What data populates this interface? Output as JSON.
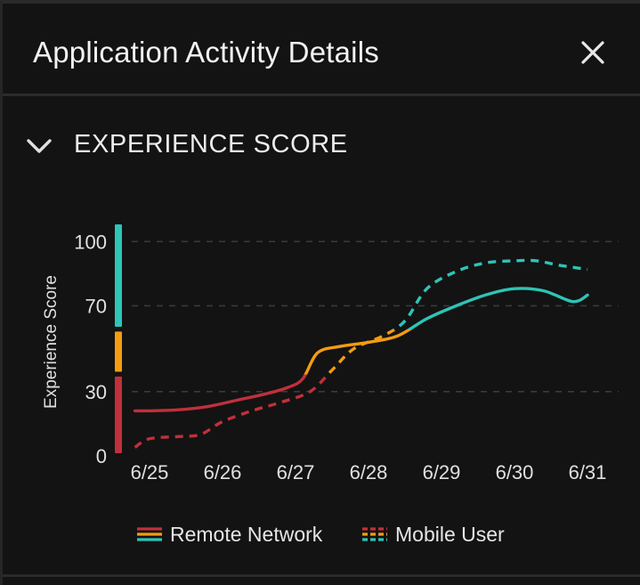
{
  "panel": {
    "title": "Application Activity Details",
    "close_icon": "close-icon"
  },
  "section": {
    "title": "EXPERIENCE SCORE",
    "toggle_icon": "chevron-down-icon"
  },
  "colors": {
    "good": "#2ec4b6",
    "fair": "#f39c12",
    "poor": "#c0303a",
    "gridline": "#3a3a3a",
    "text": "#e0e0e0"
  },
  "chart_data": {
    "type": "line",
    "ylabel": "Experience Score",
    "xlabel": "",
    "ylim": [
      0,
      108
    ],
    "yticks": [
      0,
      30,
      70,
      100
    ],
    "categories": [
      "6/25",
      "6/26",
      "6/27",
      "6/28",
      "6/29",
      "6/30",
      "6/31"
    ],
    "grid": true,
    "legend_position": "bottom-center",
    "score_bands": [
      {
        "range": [
          0,
          37
        ],
        "color": "#c0303a"
      },
      {
        "range": [
          38,
          58
        ],
        "color": "#f39c12"
      },
      {
        "range": [
          59,
          108
        ],
        "color": "#2ec4b6"
      }
    ],
    "series": [
      {
        "name": "Remote Network",
        "style": "solid",
        "x": [
          24.8,
          25.0,
          25.4,
          25.8,
          26.2,
          26.6,
          26.9,
          27.1,
          27.3,
          27.6,
          28.0,
          28.4,
          28.8,
          29.2,
          29.6,
          30.0,
          30.4,
          30.8,
          31.0
        ],
        "y": [
          21,
          21,
          21.5,
          23,
          26,
          29,
          32,
          36,
          48,
          51,
          53,
          56,
          64,
          70,
          75,
          78,
          77,
          72,
          75
        ]
      },
      {
        "name": "Mobile User",
        "style": "dashed",
        "x": [
          24.8,
          25.0,
          25.4,
          25.7,
          26.0,
          26.4,
          26.8,
          27.2,
          27.5,
          27.8,
          28.2,
          28.5,
          28.8,
          29.2,
          29.6,
          30.0,
          30.3,
          30.6,
          31.0
        ],
        "y": [
          4,
          8,
          9,
          10,
          16,
          21,
          25,
          30,
          40,
          50,
          56,
          63,
          78,
          86,
          90,
          91,
          91,
          89,
          87
        ]
      }
    ]
  }
}
